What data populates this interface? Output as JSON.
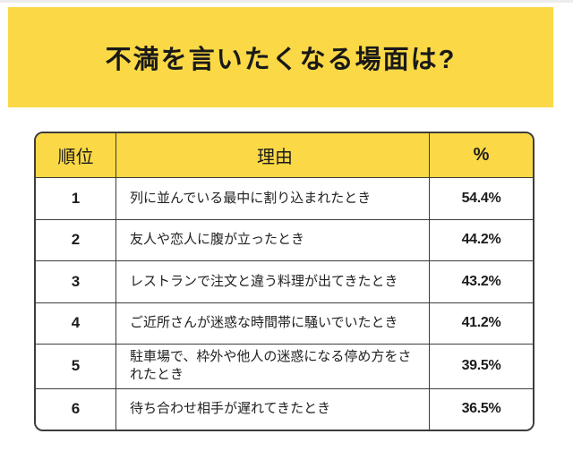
{
  "title": "不満を言いたくなる場面は?",
  "colors": {
    "accent_yellow": "#fbd845",
    "table_border": "#3c3c3c",
    "text": "#1c1c1c",
    "background": "#ffffff"
  },
  "table": {
    "headers": {
      "rank": "順位",
      "reason": "理由",
      "percent": "%"
    },
    "rows": [
      {
        "rank": "1",
        "reason": "列に並んでいる最中に割り込まれたとき",
        "percent": "54.4%"
      },
      {
        "rank": "2",
        "reason": "友人や恋人に腹が立ったとき",
        "percent": "44.2%"
      },
      {
        "rank": "3",
        "reason": "レストランで注文と違う料理が出てきたとき",
        "percent": "43.2%"
      },
      {
        "rank": "4",
        "reason": "ご近所さんが迷惑な時間帯に騒いでいたとき",
        "percent": "41.2%"
      },
      {
        "rank": "5",
        "reason": "駐車場で、枠外や他人の迷惑になる停め方をされたとき",
        "percent": "39.5%"
      },
      {
        "rank": "6",
        "reason": "待ち合わせ相手が遅れてきたとき",
        "percent": "36.5%"
      }
    ]
  },
  "chart_data": {
    "type": "table",
    "title": "不満を言いたくなる場面は?",
    "columns": [
      "順位",
      "理由",
      "%"
    ],
    "categories": [
      "列に並んでいる最中に割り込まれたとき",
      "友人や恋人に腹が立ったとき",
      "レストランで注文と違う料理が出てきたとき",
      "ご近所さんが迷惑な時間帯に騒いでいたとき",
      "駐車場で、枠外や他人の迷惑になる停め方をされたとき",
      "待ち合わせ相手が遅れてきたとき"
    ],
    "ranks": [
      1,
      2,
      3,
      4,
      5,
      6
    ],
    "values": [
      54.4,
      44.2,
      43.2,
      41.2,
      39.5,
      36.5
    ],
    "value_unit": "%"
  }
}
